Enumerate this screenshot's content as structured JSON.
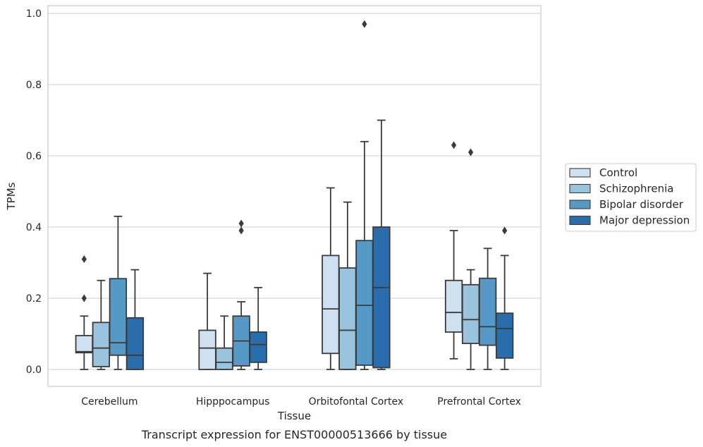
{
  "caption": "Transcript expression for ENST00000513666 by tissue",
  "chart_data": {
    "type": "boxplot",
    "xlabel": "Tissue",
    "ylabel": "TPMs",
    "ylim": [
      -0.047,
      1.02
    ],
    "yticks": [
      0.0,
      0.2,
      0.4,
      0.6,
      0.8,
      1.0
    ],
    "ytick_labels": [
      "0.0",
      "0.2",
      "0.4",
      "0.6",
      "0.8",
      "1.0"
    ],
    "grid": "horizontal",
    "legend_position": "right",
    "categories": [
      "Cerebellum",
      "Hipppocampus",
      "Orbitofontal Cortex",
      "Prefrontal Cortex"
    ],
    "series": [
      {
        "name": "Control",
        "color": "#cfe0f1",
        "boxes": [
          {
            "whislo": 0.0,
            "q1": 0.047,
            "med": 0.05,
            "q3": 0.095,
            "whishi": 0.15,
            "fliers": [
              0.2,
              0.31
            ]
          },
          {
            "whislo": 0.0,
            "q1": 0.0,
            "med": 0.06,
            "q3": 0.11,
            "whishi": 0.27,
            "fliers": []
          },
          {
            "whislo": 0.0,
            "q1": 0.045,
            "med": 0.17,
            "q3": 0.32,
            "whishi": 0.51,
            "fliers": []
          },
          {
            "whislo": 0.03,
            "q1": 0.105,
            "med": 0.16,
            "q3": 0.25,
            "whishi": 0.39,
            "fliers": [
              0.63
            ]
          }
        ]
      },
      {
        "name": "Schizophrenia",
        "color": "#9ac3de",
        "boxes": [
          {
            "whislo": 0.0,
            "q1": 0.008,
            "med": 0.06,
            "q3": 0.132,
            "whishi": 0.25,
            "fliers": []
          },
          {
            "whislo": 0.0,
            "q1": 0.0,
            "med": 0.02,
            "q3": 0.06,
            "whishi": 0.15,
            "fliers": []
          },
          {
            "whislo": 0.0,
            "q1": 0.0,
            "med": 0.11,
            "q3": 0.285,
            "whishi": 0.47,
            "fliers": []
          },
          {
            "whislo": 0.0,
            "q1": 0.073,
            "med": 0.14,
            "q3": 0.238,
            "whishi": 0.28,
            "fliers": [
              0.61
            ]
          }
        ]
      },
      {
        "name": "Bipolar disorder",
        "color": "#5799c6",
        "boxes": [
          {
            "whislo": 0.0,
            "q1": 0.04,
            "med": 0.075,
            "q3": 0.255,
            "whishi": 0.43,
            "fliers": []
          },
          {
            "whislo": 0.0,
            "q1": 0.01,
            "med": 0.08,
            "q3": 0.15,
            "whishi": 0.19,
            "fliers": [
              0.39,
              0.41
            ]
          },
          {
            "whislo": 0.0,
            "q1": 0.012,
            "med": 0.18,
            "q3": 0.362,
            "whishi": 0.64,
            "fliers": [
              0.97
            ]
          },
          {
            "whislo": 0.0,
            "q1": 0.068,
            "med": 0.12,
            "q3": 0.256,
            "whishi": 0.34,
            "fliers": []
          }
        ]
      },
      {
        "name": "Major depression",
        "color": "#2a6dad",
        "boxes": [
          {
            "whislo": 0.0,
            "q1": 0.0,
            "med": 0.04,
            "q3": 0.145,
            "whishi": 0.28,
            "fliers": []
          },
          {
            "whislo": 0.0,
            "q1": 0.02,
            "med": 0.07,
            "q3": 0.105,
            "whishi": 0.23,
            "fliers": []
          },
          {
            "whislo": 0.0,
            "q1": 0.005,
            "med": 0.23,
            "q3": 0.4,
            "whishi": 0.7,
            "fliers": []
          },
          {
            "whislo": 0.0,
            "q1": 0.032,
            "med": 0.115,
            "q3": 0.158,
            "whishi": 0.32,
            "fliers": [
              0.39
            ]
          }
        ]
      }
    ]
  }
}
